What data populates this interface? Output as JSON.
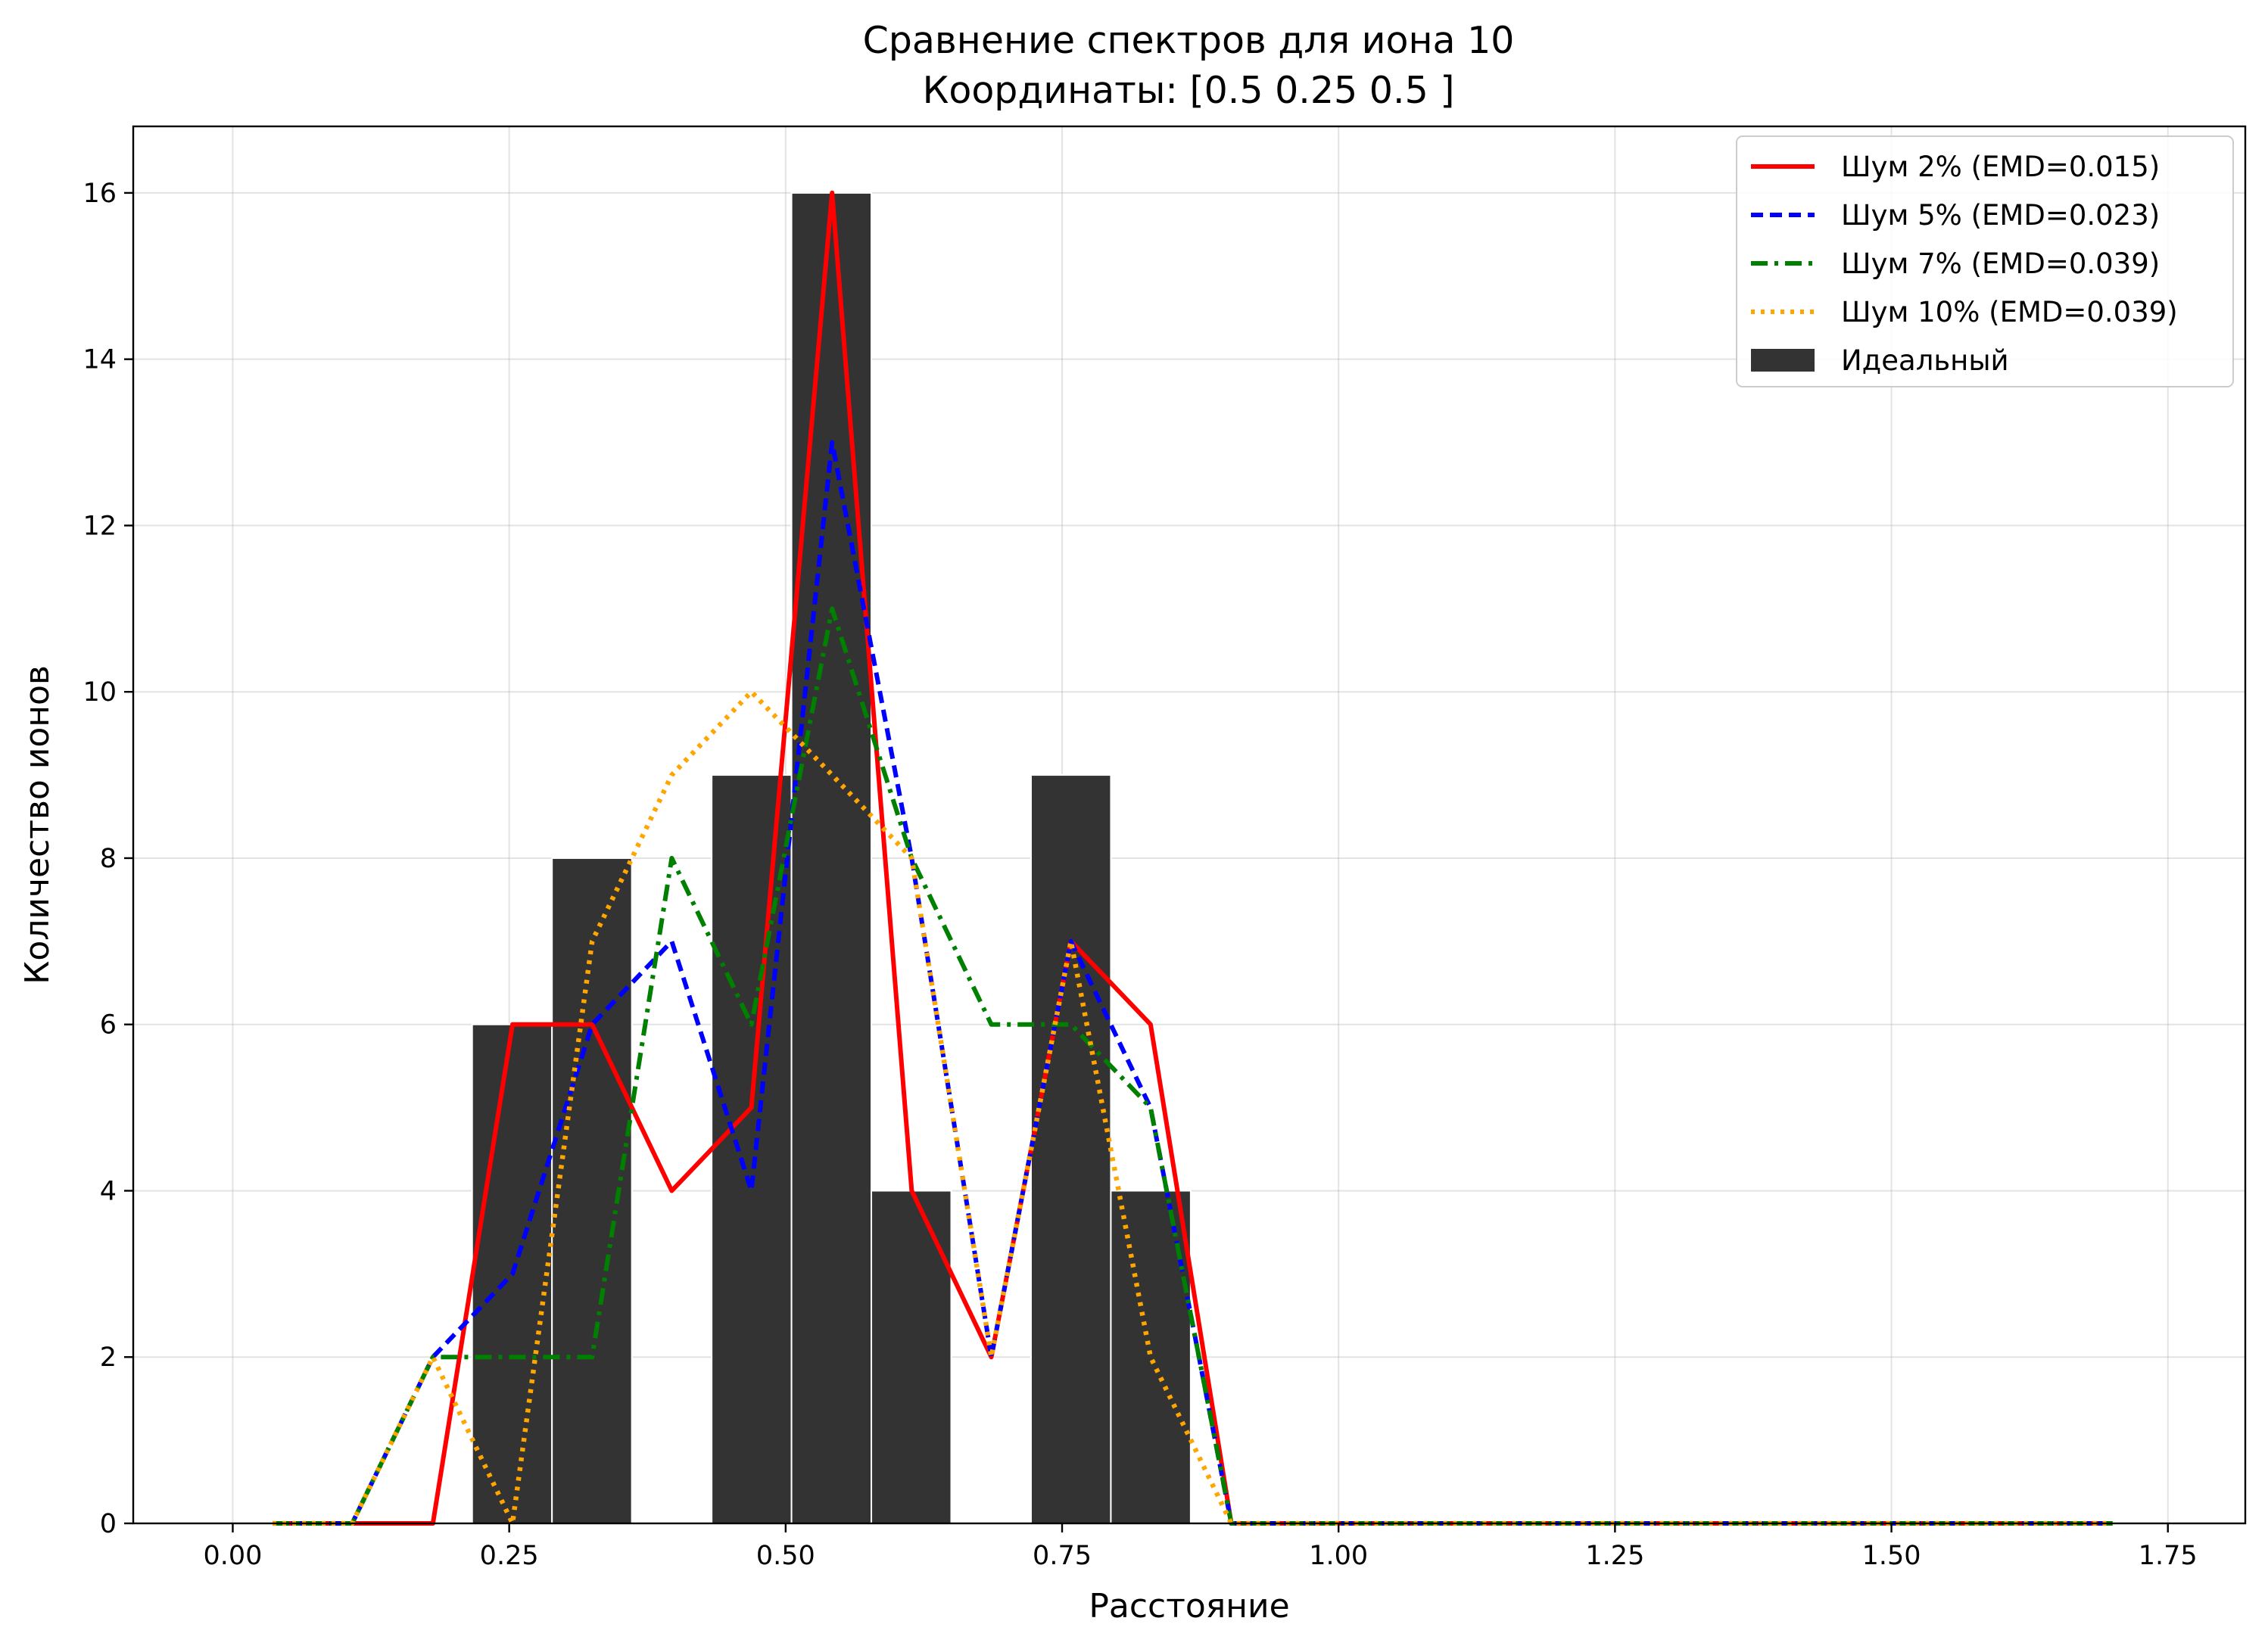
{
  "chart_data": {
    "type": "bar",
    "title": "Сравнение спектров для иона 10",
    "subtitle": "Координаты: [0.5  0.25 0.5 ]",
    "xlabel": "Расстояние",
    "ylabel": "Количество ионов",
    "xlim": [
      -0.09,
      1.82
    ],
    "ylim": [
      0,
      16.8
    ],
    "xticks": [
      0.0,
      0.25,
      0.5,
      0.75,
      1.0,
      1.25,
      1.5,
      1.75
    ],
    "xtick_labels": [
      "0.00",
      "0.25",
      "0.50",
      "0.75",
      "1.00",
      "1.25",
      "1.50",
      "1.75"
    ],
    "yticks": [
      0,
      2,
      4,
      6,
      8,
      10,
      12,
      14,
      16
    ],
    "ytick_labels": [
      "0",
      "2",
      "4",
      "6",
      "8",
      "10",
      "12",
      "14",
      "16"
    ],
    "grid": true,
    "legend_position": "top-right",
    "bars": {
      "name": "Идеальный",
      "color": "#333333",
      "edge_color": "#ffffff",
      "bin_width": 0.0722,
      "centers": [
        0.2526,
        0.3248,
        0.4692,
        0.5414,
        0.6136,
        0.758,
        0.8302
      ],
      "values": [
        6,
        8,
        9,
        16,
        4,
        9,
        4
      ]
    },
    "series": [
      {
        "name": "Шум 2% (EMD=0.015)",
        "color": "#ff0000",
        "dash": "solid",
        "x": [
          0.036,
          0.108,
          0.181,
          0.253,
          0.325,
          0.397,
          0.469,
          0.542,
          0.614,
          0.686,
          0.758,
          0.83,
          0.903,
          1.7
        ],
        "y": [
          0,
          0,
          0,
          6,
          6,
          4,
          5,
          16,
          4,
          2,
          7,
          6,
          0,
          0
        ]
      },
      {
        "name": "Шум 5% (EMD=0.023)",
        "color": "#0000ff",
        "dash": "dashed",
        "x": [
          0.036,
          0.108,
          0.181,
          0.253,
          0.325,
          0.397,
          0.469,
          0.542,
          0.614,
          0.686,
          0.758,
          0.83,
          0.903,
          1.7
        ],
        "y": [
          0,
          0,
          2,
          3,
          6,
          7,
          4,
          13,
          8,
          2,
          7,
          5,
          0,
          0
        ]
      },
      {
        "name": "Шум 7% (EMD=0.039)",
        "color": "#008000",
        "dash": "dashdot",
        "x": [
          0.036,
          0.108,
          0.181,
          0.253,
          0.325,
          0.397,
          0.469,
          0.542,
          0.614,
          0.686,
          0.758,
          0.83,
          0.903,
          1.7
        ],
        "y": [
          0,
          0,
          2,
          2,
          2,
          8,
          6,
          11,
          8,
          6,
          6,
          5,
          0,
          0
        ]
      },
      {
        "name": "Шум 10% (EMD=0.039)",
        "color": "#ffa500",
        "dash": "dotted",
        "x": [
          0.036,
          0.108,
          0.181,
          0.253,
          0.325,
          0.397,
          0.469,
          0.542,
          0.614,
          0.686,
          0.758,
          0.83,
          0.903,
          1.7
        ],
        "y": [
          0,
          0,
          2,
          0,
          7,
          9,
          10,
          9,
          8,
          2,
          7,
          2,
          0,
          0
        ]
      }
    ]
  }
}
